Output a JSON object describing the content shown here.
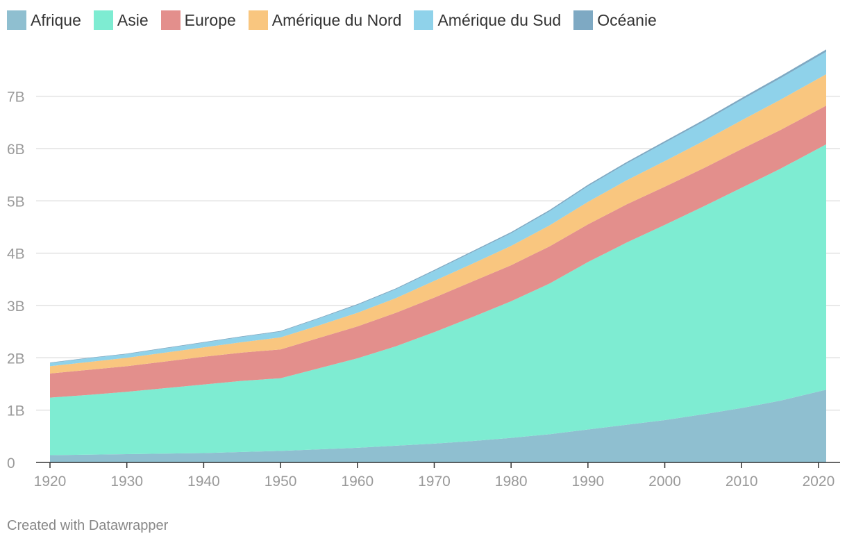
{
  "chart_data": {
    "type": "area",
    "stacked": true,
    "x": [
      1920,
      1925,
      1930,
      1935,
      1940,
      1945,
      1950,
      1955,
      1960,
      1965,
      1970,
      1975,
      1980,
      1985,
      1990,
      1995,
      2000,
      2005,
      2010,
      2015,
      2021
    ],
    "series": [
      {
        "name": "Afrique",
        "color": "#8fbfd0",
        "values": [
          0.14,
          0.15,
          0.16,
          0.17,
          0.18,
          0.2,
          0.22,
          0.25,
          0.28,
          0.32,
          0.36,
          0.41,
          0.47,
          0.54,
          0.63,
          0.72,
          0.81,
          0.92,
          1.04,
          1.18,
          1.39
        ]
      },
      {
        "name": "Asie",
        "color": "#7eecd2",
        "values": [
          1.1,
          1.14,
          1.19,
          1.25,
          1.31,
          1.36,
          1.39,
          1.55,
          1.71,
          1.9,
          2.13,
          2.37,
          2.61,
          2.88,
          3.2,
          3.48,
          3.73,
          3.97,
          4.21,
          4.43,
          4.69
        ]
      },
      {
        "name": "Europe",
        "color": "#e38f8c",
        "values": [
          0.46,
          0.48,
          0.49,
          0.51,
          0.53,
          0.54,
          0.55,
          0.58,
          0.61,
          0.64,
          0.66,
          0.68,
          0.69,
          0.71,
          0.72,
          0.73,
          0.73,
          0.73,
          0.74,
          0.74,
          0.74
        ]
      },
      {
        "name": "Amérique du Nord",
        "color": "#f9c67f",
        "values": [
          0.14,
          0.15,
          0.16,
          0.17,
          0.18,
          0.2,
          0.23,
          0.24,
          0.26,
          0.28,
          0.32,
          0.34,
          0.37,
          0.4,
          0.43,
          0.46,
          0.49,
          0.52,
          0.55,
          0.58,
          0.6
        ]
      },
      {
        "name": "Amérique du Sud",
        "color": "#8fd2ea",
        "values": [
          0.06,
          0.07,
          0.07,
          0.08,
          0.09,
          0.1,
          0.11,
          0.13,
          0.15,
          0.17,
          0.19,
          0.22,
          0.24,
          0.27,
          0.3,
          0.32,
          0.35,
          0.37,
          0.39,
          0.41,
          0.43
        ]
      },
      {
        "name": "Océanie",
        "color": "#7ea9c3",
        "values": [
          0.009,
          0.01,
          0.011,
          0.011,
          0.011,
          0.012,
          0.013,
          0.014,
          0.016,
          0.017,
          0.02,
          0.021,
          0.023,
          0.025,
          0.027,
          0.029,
          0.031,
          0.033,
          0.037,
          0.04,
          0.043
        ]
      }
    ],
    "y_ticks": [
      "0",
      "1B",
      "2B",
      "3B",
      "4B",
      "5B",
      "6B",
      "7B"
    ],
    "x_ticks": [
      "1920",
      "1930",
      "1940",
      "1950",
      "1960",
      "1970",
      "1980",
      "1990",
      "2000",
      "2010",
      "2020"
    ],
    "xlim": [
      1920,
      2021
    ],
    "ylim": [
      0,
      7.95
    ],
    "unit": "billions",
    "legend_placement": "top-left",
    "grid": true
  },
  "legend": [
    {
      "label": "Afrique",
      "color": "#8fbfd0"
    },
    {
      "label": "Asie",
      "color": "#7eecd2"
    },
    {
      "label": "Europe",
      "color": "#e38f8c"
    },
    {
      "label": "Amérique du Nord",
      "color": "#f9c67f"
    },
    {
      "label": "Amérique du Sud",
      "color": "#8fd2ea"
    },
    {
      "label": "Océanie",
      "color": "#7ea9c3"
    }
  ],
  "footer": "Created with Datawrapper"
}
